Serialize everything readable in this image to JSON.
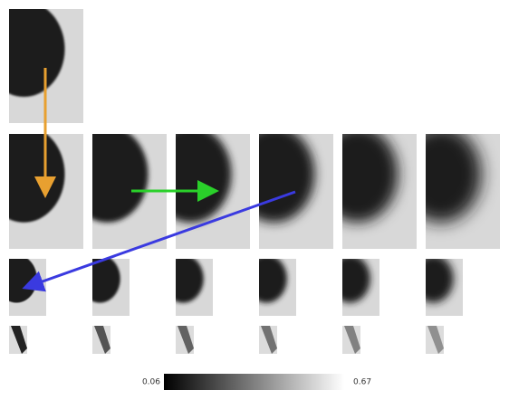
{
  "colorbar": {
    "min": 0.06,
    "max": 0.67
  }
}
